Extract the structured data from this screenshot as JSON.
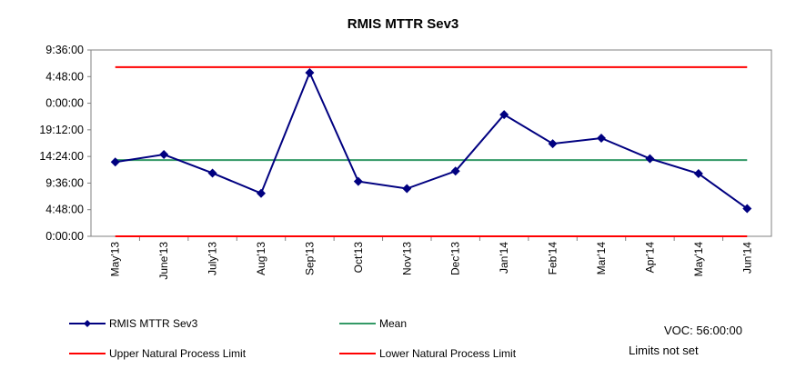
{
  "chart_data": {
    "type": "line",
    "title": "RMIS MTTR Sev3",
    "categories": [
      "May'13",
      "June'13",
      "July'13",
      "Aug'13",
      "Sep'13",
      "Oct'13",
      "Nov'13",
      "Dec'13",
      "Jan'14",
      "Feb'14",
      "Mar'14",
      "Apr'14",
      "May'14",
      "Jun'14"
    ],
    "y_tick_labels": [
      "0:00:00",
      "4:48:00",
      "9:36:00",
      "14:24:00",
      "19:12:00",
      "0:00:00",
      "4:48:00",
      "9:36:00"
    ],
    "y_axis_max_hours": 67.2,
    "y_tick_step_hours": 9.6,
    "series": [
      {
        "name": "RMIS MTTR Sev3",
        "color": "#000080",
        "marker": "diamond",
        "values_hours": [
          26.8,
          29.5,
          22.8,
          15.5,
          59.0,
          19.8,
          17.2,
          23.5,
          43.9,
          33.4,
          35.4,
          28.0,
          22.6,
          10.0
        ]
      },
      {
        "name": "Mean",
        "color": "#339966",
        "value_hours": 27.5
      },
      {
        "name": "Upper Natural Process Limit",
        "color": "#ff0000",
        "value_hours": 61.0
      },
      {
        "name": "Lower Natural Process Limit",
        "color": "#ff0000",
        "value_hours": 0.0
      }
    ],
    "grid": false,
    "legend_position": "bottom"
  },
  "annotations": {
    "voc": "VOC: 56:00:00",
    "limits_note": "Limits not set"
  }
}
